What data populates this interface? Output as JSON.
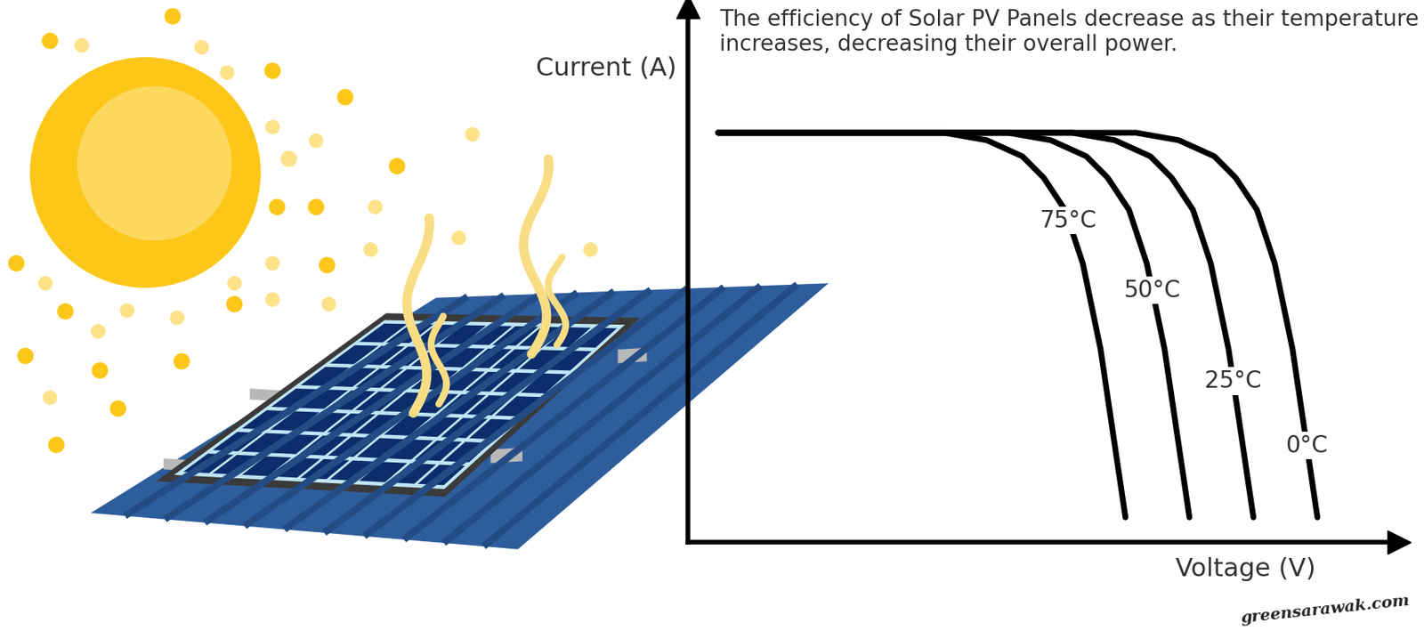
{
  "chart_data": {
    "type": "line",
    "title": "The efficiency of Solar PV Panels decrease as their temperature increases, decreasing their overall power.",
    "y_label": "Current (A)",
    "x_label": "Voltage (V)",
    "annotations": [
      "greensarawak.com"
    ],
    "xlim": [
      0,
      100
    ],
    "ylim": [
      0,
      100
    ],
    "tick_labels": false,
    "grid": false,
    "series": [
      {
        "name": "75°C",
        "color": "#000000",
        "x": [
          4.2,
          36,
          42,
          47,
          50,
          53,
          55.5,
          58,
          61.5
        ],
        "values": [
          76.4,
          76.4,
          75,
          72,
          68,
          62,
          52,
          36,
          4.6
        ]
      },
      {
        "name": "50°C",
        "color": "#000000",
        "x": [
          4.2,
          45,
          51,
          56,
          59,
          62,
          64.5,
          67,
          70.5
        ],
        "values": [
          76.4,
          76.4,
          75,
          72,
          68,
          62,
          52,
          36,
          4.6
        ]
      },
      {
        "name": "25°C",
        "color": "#000000",
        "x": [
          4.2,
          54,
          60,
          65,
          68,
          71,
          73.5,
          76,
          79.5
        ],
        "values": [
          76.4,
          76.4,
          75,
          72,
          68,
          62,
          52,
          36,
          4.6
        ]
      },
      {
        "name": "0°C",
        "color": "#000000",
        "x": [
          4.2,
          63,
          69,
          74,
          77,
          80,
          82.5,
          85,
          88.5
        ],
        "values": [
          76.4,
          76.4,
          75,
          72,
          68,
          62,
          52,
          36,
          4.6
        ]
      }
    ]
  }
}
